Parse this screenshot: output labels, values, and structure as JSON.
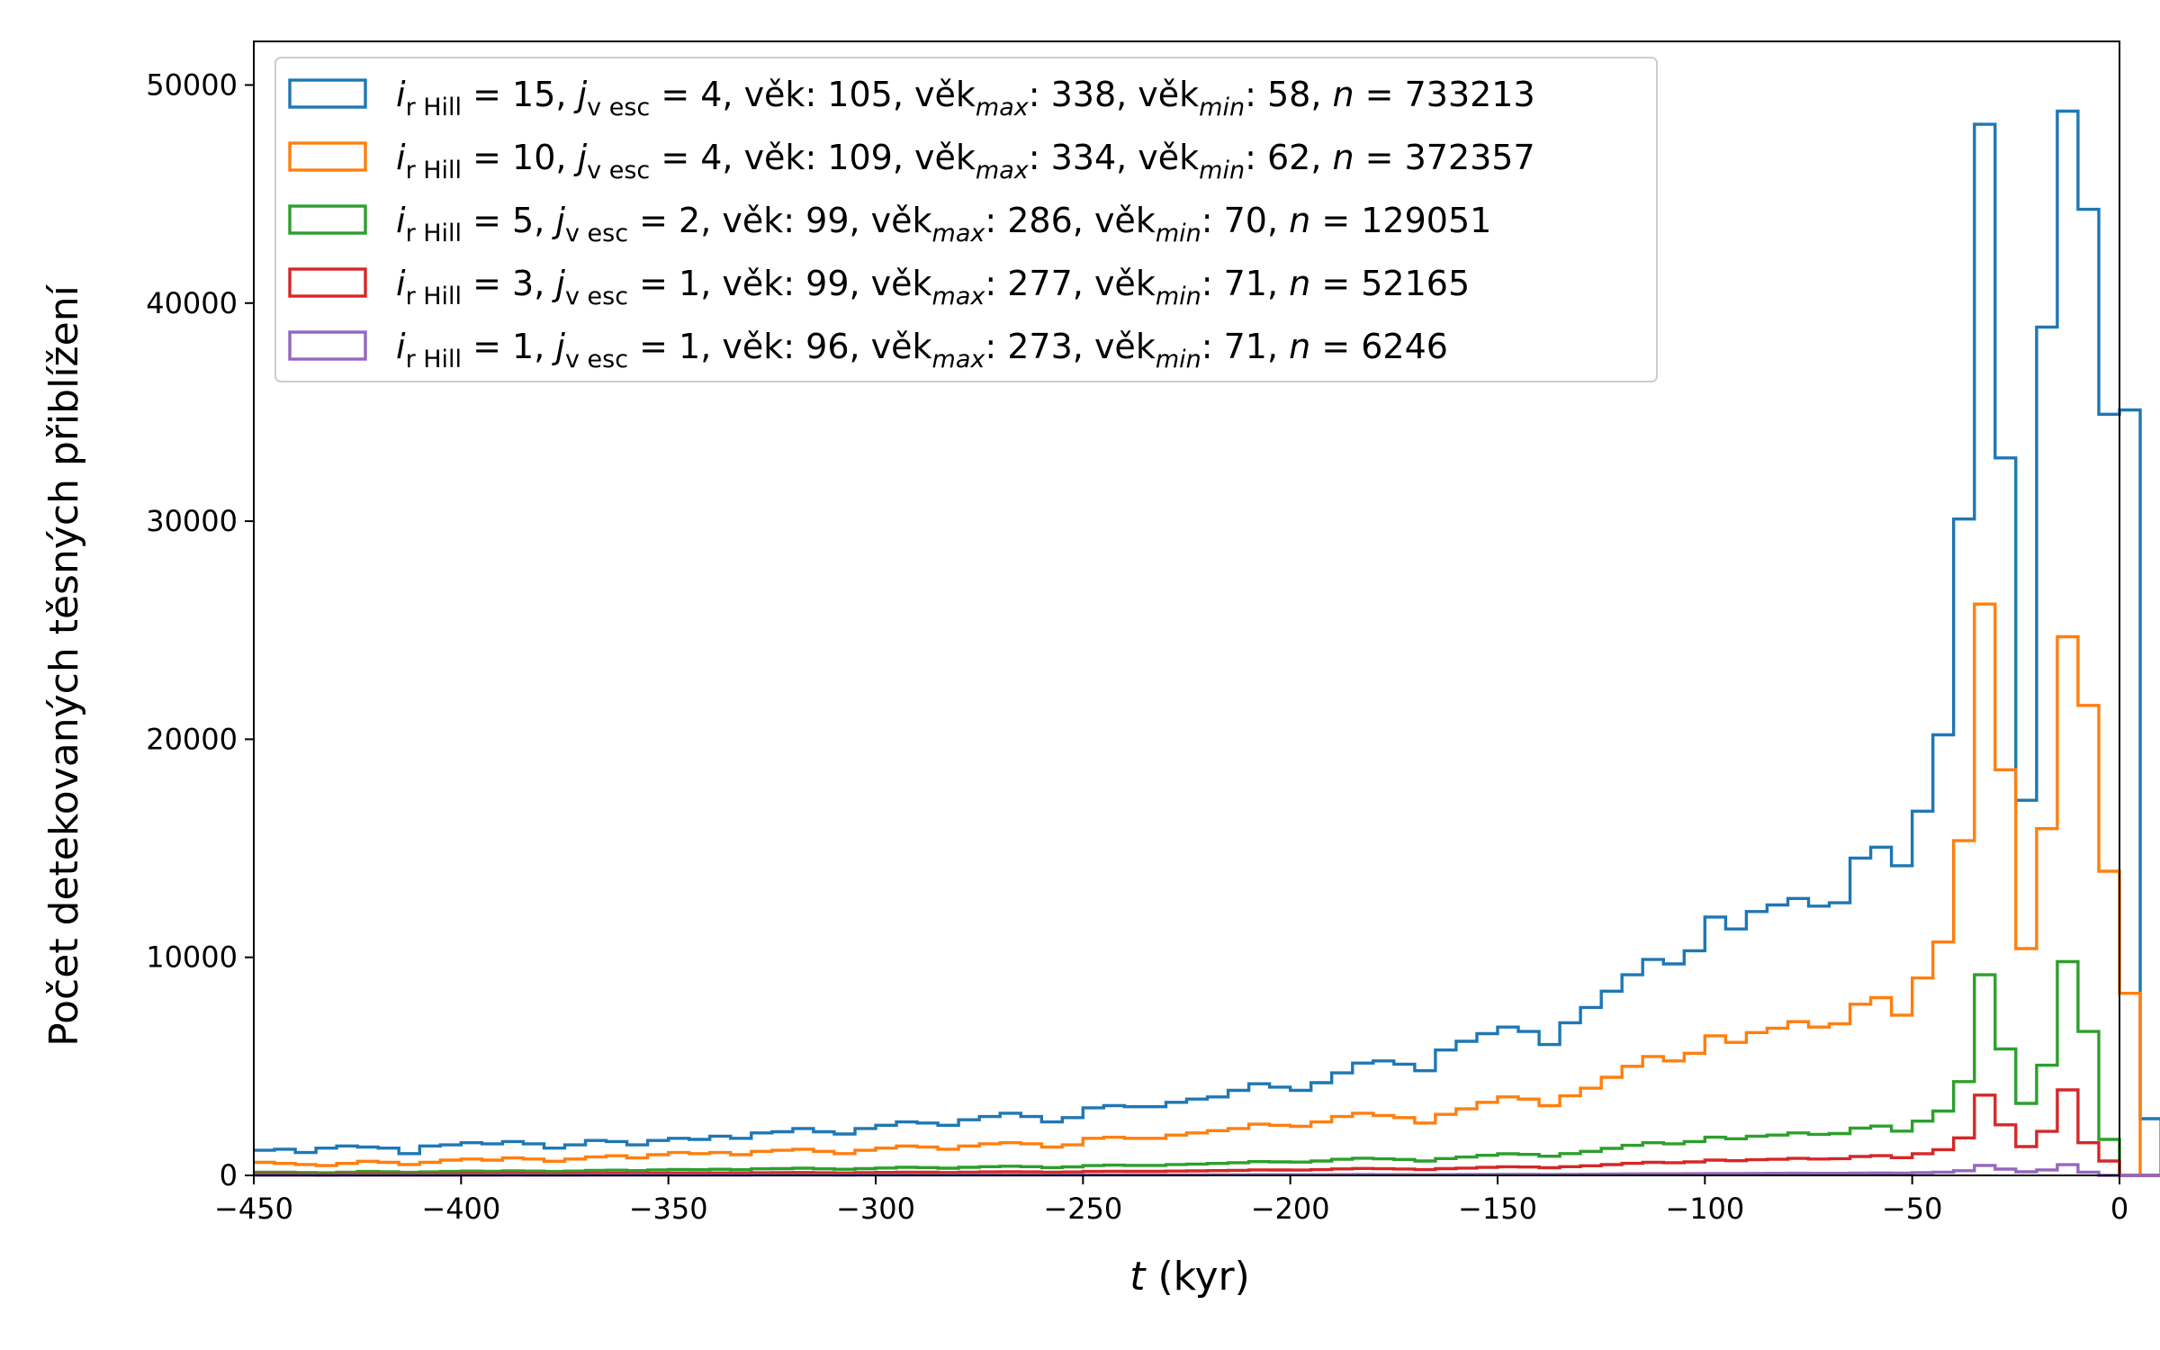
{
  "chart_data": {
    "type": "histogram-step",
    "xlabel": {
      "italic": "t",
      "rest": " (kyr)"
    },
    "ylabel": "Počet detekovaných těsných přiblížení",
    "xlim": [
      -450,
      0
    ],
    "ylim": [
      0,
      52000
    ],
    "xticks": [
      -450,
      -400,
      -350,
      -300,
      -250,
      -200,
      -150,
      -100,
      -50,
      0
    ],
    "xtick_labels": [
      "−450",
      "−400",
      "−350",
      "−300",
      "−250",
      "−200",
      "−150",
      "−100",
      "−50",
      "0"
    ],
    "yticks": [
      0,
      10000,
      20000,
      30000,
      40000,
      50000
    ],
    "ytick_labels": [
      "0",
      "10000",
      "20000",
      "30000",
      "40000",
      "50000"
    ],
    "grid": false,
    "legend_position": "top-left",
    "bin_edge_start": -450,
    "bin_width": 5,
    "series": [
      {
        "color": "#1f77b4",
        "legend": {
          "i": "15",
          "j": "4",
          "vek": "105",
          "vekmax": "338",
          "vekmin": "58",
          "n": "733213"
        },
        "values": [
          1150,
          1200,
          1050,
          1250,
          1350,
          1300,
          1250,
          1000,
          1350,
          1400,
          1500,
          1450,
          1550,
          1450,
          1250,
          1400,
          1600,
          1550,
          1400,
          1600,
          1700,
          1650,
          1800,
          1700,
          1950,
          2000,
          2150,
          2000,
          1900,
          2150,
          2300,
          2450,
          2400,
          2300,
          2550,
          2700,
          2850,
          2700,
          2450,
          2650,
          3100,
          3200,
          3150,
          3150,
          3350,
          3500,
          3600,
          3900,
          4200,
          4050,
          3900,
          4250,
          4700,
          5150,
          5250,
          5100,
          4800,
          5750,
          6150,
          6500,
          6800,
          6600,
          6000,
          7000,
          7700,
          8450,
          9200,
          9900,
          9700,
          10300,
          11850,
          11300,
          12100,
          12400,
          12700,
          12350,
          12500,
          14550,
          15050,
          14200,
          16700,
          20200,
          30100,
          48200,
          32900,
          17200,
          38900,
          48800,
          44300,
          34900,
          35100,
          2600,
          0,
          0,
          0,
          0,
          0,
          0,
          0,
          0
        ]
      },
      {
        "color": "#ff7f0e",
        "legend": {
          "i": "10",
          "j": "4",
          "vek": "109",
          "vekmax": "334",
          "vekmin": "62",
          "n": "372357"
        },
        "values": [
          600,
          550,
          500,
          450,
          550,
          650,
          600,
          500,
          600,
          700,
          750,
          700,
          800,
          750,
          650,
          750,
          850,
          900,
          800,
          950,
          1050,
          1000,
          1050,
          950,
          1100,
          1150,
          1200,
          1100,
          1000,
          1150,
          1250,
          1350,
          1300,
          1200,
          1350,
          1450,
          1500,
          1450,
          1300,
          1400,
          1700,
          1750,
          1700,
          1700,
          1850,
          1950,
          2050,
          2150,
          2350,
          2300,
          2250,
          2450,
          2700,
          2850,
          2750,
          2650,
          2400,
          2800,
          3050,
          3350,
          3600,
          3500,
          3200,
          3650,
          4000,
          4500,
          5000,
          5450,
          5250,
          5600,
          6400,
          6100,
          6550,
          6750,
          7050,
          6800,
          6950,
          7850,
          8150,
          7350,
          9050,
          10700,
          15350,
          26200,
          18600,
          10400,
          15900,
          24700,
          21550,
          13950,
          8350,
          0,
          0,
          0,
          0,
          0,
          0,
          0,
          0,
          0
        ]
      },
      {
        "color": "#2ca02c",
        "legend": {
          "i": " 5",
          "j": "2",
          "vek": " 99",
          "vekmax": "286",
          "vekmin": "70",
          "n": "129051"
        },
        "values": [
          150,
          150,
          130,
          120,
          150,
          180,
          170,
          140,
          160,
          180,
          200,
          190,
          210,
          200,
          180,
          200,
          230,
          240,
          220,
          250,
          270,
          260,
          280,
          260,
          300,
          310,
          330,
          300,
          280,
          310,
          340,
          370,
          360,
          330,
          370,
          400,
          420,
          400,
          360,
          390,
          450,
          470,
          460,
          460,
          500,
          520,
          550,
          580,
          630,
          620,
          610,
          660,
          740,
          790,
          760,
          730,
          660,
          770,
          840,
          920,
          990,
          960,
          880,
          1000,
          1100,
          1240,
          1380,
          1500,
          1450,
          1550,
          1750,
          1680,
          1800,
          1850,
          1950,
          1880,
          1920,
          2170,
          2260,
          2030,
          2490,
          2950,
          4300,
          9200,
          5800,
          3300,
          5050,
          9800,
          6600,
          1650,
          0,
          0,
          0,
          0,
          0,
          0,
          0,
          0,
          0,
          0
        ]
      },
      {
        "color": "#d62728",
        "legend": {
          "i": " 3",
          "j": "1",
          "vek": " 99",
          "vekmax": "277",
          "vekmin": "71",
          "n": "52165"
        },
        "values": [
          60,
          60,
          55,
          50,
          60,
          70,
          68,
          56,
          64,
          72,
          80,
          76,
          84,
          80,
          72,
          80,
          92,
          96,
          88,
          100,
          108,
          104,
          112,
          104,
          120,
          124,
          132,
          120,
          112,
          124,
          136,
          148,
          144,
          132,
          148,
          160,
          168,
          160,
          144,
          156,
          180,
          188,
          184,
          184,
          200,
          208,
          220,
          232,
          252,
          248,
          244,
          264,
          296,
          316,
          304,
          292,
          264,
          308,
          336,
          368,
          396,
          384,
          352,
          400,
          440,
          496,
          552,
          600,
          580,
          620,
          700,
          672,
          720,
          740,
          780,
          752,
          768,
          868,
          904,
          812,
          996,
          1180,
          1720,
          3680,
          2320,
          1320,
          2020,
          3920,
          1500,
          660,
          0,
          0,
          0,
          0,
          0,
          0,
          0,
          0,
          0,
          0
        ]
      },
      {
        "color": "#9467bd",
        "legend": {
          "i": " 1",
          "j": "1",
          "vek": " 96",
          "vekmax": "273",
          "vekmin": "71",
          "n": "6246"
        },
        "values": [
          8,
          8,
          7,
          6,
          8,
          9,
          9,
          7,
          8,
          9,
          10,
          10,
          11,
          10,
          9,
          10,
          12,
          12,
          11,
          13,
          14,
          13,
          14,
          13,
          15,
          16,
          17,
          15,
          14,
          16,
          17,
          19,
          18,
          17,
          19,
          20,
          21,
          20,
          18,
          20,
          23,
          24,
          23,
          23,
          25,
          26,
          28,
          29,
          32,
          31,
          31,
          33,
          37,
          40,
          38,
          37,
          33,
          39,
          42,
          46,
          50,
          48,
          44,
          50,
          55,
          62,
          69,
          75,
          73,
          78,
          88,
          84,
          90,
          93,
          98,
          94,
          96,
          109,
          113,
          102,
          125,
          148,
          215,
          460,
          290,
          165,
          252,
          490,
          150,
          0,
          0,
          0,
          0,
          0,
          0,
          0,
          0,
          0,
          0,
          0
        ]
      }
    ]
  }
}
